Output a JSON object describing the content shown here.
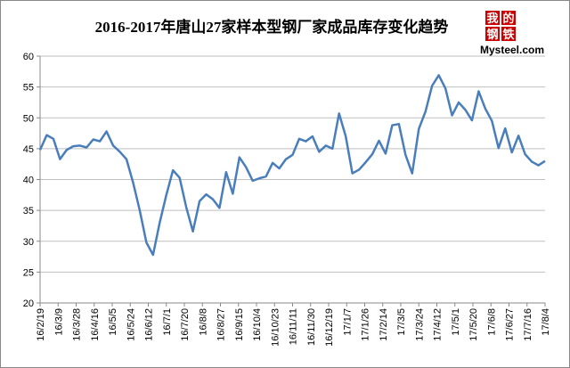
{
  "chart_data": {
    "type": "line",
    "title": "2016-2017年唐山27家样本型钢厂家成品库存变化趋势",
    "logo": {
      "characters": [
        "我",
        "的",
        "钢",
        "铁"
      ],
      "brand": "Mysteel.com"
    },
    "x": [
      "2016-02-19",
      "2016-02-26",
      "2016-03-04",
      "2016-03-11",
      "2016-03-18",
      "2016-03-25",
      "2016-04-01",
      "2016-04-08",
      "2016-04-15",
      "2016-04-22",
      "2016-04-29",
      "2016-05-06",
      "2016-05-13",
      "2016-05-20",
      "2016-05-27",
      "2016-06-03",
      "2016-06-10",
      "2016-06-17",
      "2016-06-24",
      "2016-07-01",
      "2016-07-08",
      "2016-07-15",
      "2016-07-22",
      "2016-07-29",
      "2016-08-05",
      "2016-08-12",
      "2016-08-19",
      "2016-08-26",
      "2016-09-02",
      "2016-09-09",
      "2016-09-16",
      "2016-09-23",
      "2016-09-30",
      "2016-10-07",
      "2016-10-14",
      "2016-10-21",
      "2016-10-28",
      "2016-11-04",
      "2016-11-11",
      "2016-11-18",
      "2016-11-25",
      "2016-12-02",
      "2016-12-09",
      "2016-12-16",
      "2016-12-23",
      "2016-12-30",
      "2017-01-06",
      "2017-01-13",
      "2017-01-20",
      "2017-01-27",
      "2017-02-03",
      "2017-02-10",
      "2017-02-17",
      "2017-02-24",
      "2017-03-03",
      "2017-03-10",
      "2017-03-17",
      "2017-03-24",
      "2017-03-31",
      "2017-04-07",
      "2017-04-14",
      "2017-04-21",
      "2017-04-28",
      "2017-05-05",
      "2017-05-12",
      "2017-05-19",
      "2017-05-26",
      "2017-06-02",
      "2017-06-09",
      "2017-06-16",
      "2017-06-23",
      "2017-06-30",
      "2017-07-07",
      "2017-07-14",
      "2017-07-21",
      "2017-07-28",
      "2017-08-04"
    ],
    "series": [
      {
        "color": "#4a7ebb",
        "values": [
          44.8,
          47.2,
          46.6,
          43.3,
          44.8,
          45.4,
          45.5,
          45.2,
          46.5,
          46.2,
          47.8,
          45.5,
          44.5,
          43.3,
          39.5,
          35,
          29.8,
          27.8,
          33,
          37.5,
          41.5,
          40.3,
          35.5,
          31.6,
          36.5,
          37.6,
          36.8,
          35.4,
          41.2,
          37.7,
          43.6,
          42,
          39.8,
          40.2,
          40.5,
          42.7,
          41.8,
          43.3,
          44,
          46.6,
          46.2,
          47,
          44.5,
          45.5,
          45,
          50.7,
          47,
          41,
          41.6,
          42.8,
          44.1,
          46.3,
          44.2,
          48.8,
          49,
          44,
          41,
          48.2,
          51,
          55.2,
          56.9,
          54.8,
          50.4,
          52.5,
          51.3,
          49.6,
          54.3,
          51.5,
          49.5,
          45.1,
          48.3,
          44.4,
          47.1,
          44.1,
          42.9,
          42.3,
          43
        ]
      }
    ],
    "xlim": [
      "2016-02-19",
      "2017-08-04"
    ],
    "xticks": [
      {
        "value": "2016-02-19",
        "label": "16/2/19"
      },
      {
        "value": "2016-03-09",
        "label": "16/3/9"
      },
      {
        "value": "2016-03-28",
        "label": "16/3/28"
      },
      {
        "value": "2016-04-16",
        "label": "16/4/16"
      },
      {
        "value": "2016-05-05",
        "label": "16/5/5"
      },
      {
        "value": "2016-05-24",
        "label": "16/5/24"
      },
      {
        "value": "2016-06-12",
        "label": "16/6/12"
      },
      {
        "value": "2016-07-01",
        "label": "16/7/1"
      },
      {
        "value": "2016-07-20",
        "label": "16/7/20"
      },
      {
        "value": "2016-08-08",
        "label": "16/8/8"
      },
      {
        "value": "2016-08-27",
        "label": "16/8/27"
      },
      {
        "value": "2016-09-15",
        "label": "16/9/15"
      },
      {
        "value": "2016-10-04",
        "label": "16/10/4"
      },
      {
        "value": "2016-10-23",
        "label": "16/10/23"
      },
      {
        "value": "2016-11-11",
        "label": "16/11/11"
      },
      {
        "value": "2016-11-30",
        "label": "16/11/30"
      },
      {
        "value": "2016-12-19",
        "label": "16/12/19"
      },
      {
        "value": "2017-01-07",
        "label": "17/1/7"
      },
      {
        "value": "2017-01-26",
        "label": "17/1/26"
      },
      {
        "value": "2017-02-14",
        "label": "17/2/14"
      },
      {
        "value": "2017-03-05",
        "label": "17/3/5"
      },
      {
        "value": "2017-03-24",
        "label": "17/3/24"
      },
      {
        "value": "2017-04-12",
        "label": "17/4/12"
      },
      {
        "value": "2017-05-01",
        "label": "17/5/1"
      },
      {
        "value": "2017-05-20",
        "label": "17/5/20"
      },
      {
        "value": "2017-06-08",
        "label": "17/6/8"
      },
      {
        "value": "2017-06-27",
        "label": "17/6/27"
      },
      {
        "value": "2017-07-16",
        "label": "17/7/16"
      },
      {
        "value": "2017-08-04",
        "label": "17/8/4"
      }
    ],
    "ylim": [
      20,
      60
    ],
    "yticks": [
      20,
      25,
      30,
      35,
      40,
      45,
      50,
      55,
      60
    ],
    "grid": true
  }
}
